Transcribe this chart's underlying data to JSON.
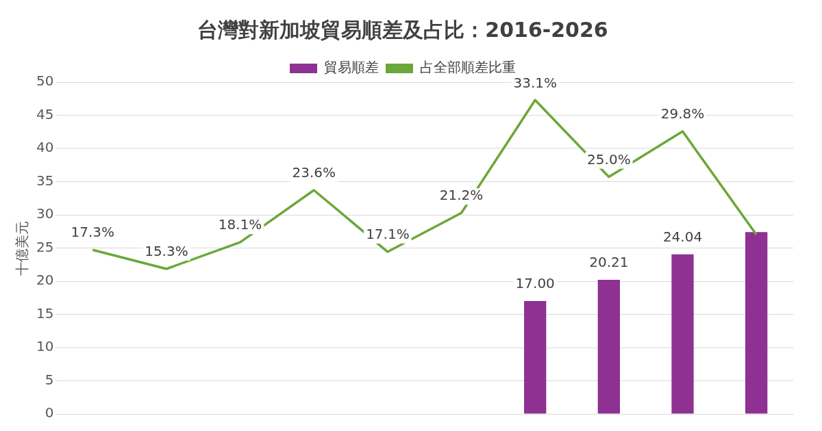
{
  "chart_data": {
    "type": "bar",
    "title": "台灣對新加坡貿易順差及占比：2016-2026",
    "ylabel": "十億美元",
    "categories": [
      null,
      null,
      null,
      null,
      null,
      null,
      null,
      null,
      null,
      null
    ],
    "series": [
      {
        "name": "貿易順差",
        "color": "#8e3192",
        "values": [
          null,
          null,
          null,
          null,
          null,
          null,
          17.0,
          20.21,
          24.04,
          27.4
        ],
        "value_labels": [
          null,
          null,
          null,
          null,
          null,
          null,
          "17.00",
          "20.21",
          "24.04",
          null
        ]
      },
      {
        "name": "占全部順差比重",
        "type": "line",
        "axis": "y2",
        "color": "#6aa839",
        "values": [
          17.3,
          15.3,
          18.1,
          23.6,
          17.1,
          21.2,
          33.1,
          25.0,
          29.8,
          18.9
        ],
        "value_labels": [
          "17.3%",
          "15.3%",
          "18.1%",
          "23.6%",
          "17.1%",
          "21.2%",
          "33.1%",
          "25.0%",
          "29.8%",
          null
        ]
      }
    ],
    "ylim": [
      0,
      50
    ],
    "yticks": [
      0,
      5,
      10,
      15,
      20,
      25,
      30,
      35,
      40,
      45,
      50
    ],
    "y2lim": [
      0,
      35
    ],
    "grid": "y",
    "legend": "top",
    "tick_labels": "y",
    "marker": "none",
    "line_style": "solid"
  }
}
